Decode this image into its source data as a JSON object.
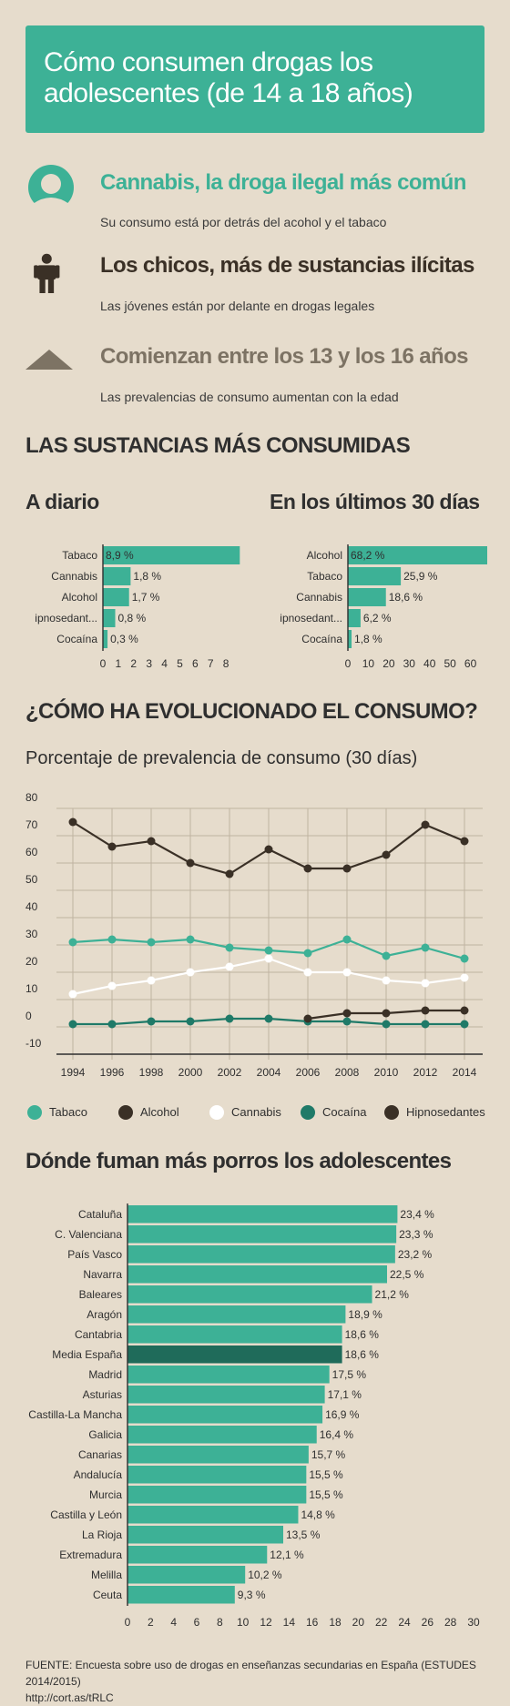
{
  "header": {
    "title": "Cómo consumen drogas los adolescentes (de 14 a 18 años)"
  },
  "facts": [
    {
      "icon": "face-icon",
      "title": "Cannabis, la droga ilegal más común",
      "subtitle": "Su consumo está por detrás del acohol y el tabaco",
      "color": "#3db196"
    },
    {
      "icon": "person-icon",
      "title": "Los chicos, más de sustancias ilícitas",
      "subtitle": "Las jóvenes están por delante en drogas legales",
      "color": "#3a3026"
    },
    {
      "icon": "triangle-icon",
      "title": "Comienzan entre los 13 y los 16 años",
      "subtitle": "Las prevalencias de consumo aumentan con la edad",
      "color": "#7d7364"
    }
  ],
  "section1": {
    "title": "LAS SUSTANCIAS MÁS CONSUMIDAS",
    "daily_title": "A diario",
    "month_title": "En los últimos 30 días"
  },
  "section2": {
    "title": "¿CÓMO HA EVOLUCIONADO EL CONSUMO?",
    "chart_title": "Porcentaje de prevalencia de consumo (30 días)"
  },
  "section3": {
    "title": "Dónde fuman más porros los adolescentes"
  },
  "footer": {
    "source": "FUENTE: Encuesta sobre uso de drogas en enseñanzas secundarias en España (ESTUDES 2014/2015)",
    "link": "http://cort.as/tRLC"
  },
  "chart_data": [
    {
      "type": "bar",
      "orientation": "horizontal",
      "title": "A diario",
      "categories": [
        "Tabaco",
        "Cannabis",
        "Alcohol",
        "ipnosedant...",
        "Cocaína"
      ],
      "values": [
        8.9,
        1.8,
        1.7,
        0.8,
        0.3
      ],
      "value_labels": [
        "8,9 %",
        "1,8 %",
        "1,7 %",
        "0,8 %",
        "0,3 %"
      ],
      "ticks": [
        "0",
        "1",
        "2",
        "3",
        "4",
        "5",
        "6",
        "7",
        "8"
      ],
      "xlim": [
        0,
        9
      ],
      "color": "#3db196"
    },
    {
      "type": "bar",
      "orientation": "horizontal",
      "title": "En los últimos 30 días",
      "categories": [
        "Alcohol",
        "Tabaco",
        "Cannabis",
        "ipnosedant...",
        "Cocaína"
      ],
      "values": [
        68.2,
        25.9,
        18.6,
        6.2,
        1.8
      ],
      "value_labels": [
        "68,2 %",
        "25,9 %",
        "18,6 %",
        "6,2 %",
        "1,8 %"
      ],
      "ticks": [
        "0",
        "10",
        "20",
        "30",
        "40",
        "50",
        "60"
      ],
      "xlim": [
        0,
        68.2
      ],
      "color": "#3db196"
    },
    {
      "type": "line",
      "title": "Porcentaje de prevalencia de consumo (30 días)",
      "x": [
        "1994",
        "1996",
        "1998",
        "2000",
        "2002",
        "2004",
        "2006",
        "2008",
        "2010",
        "2012",
        "2014"
      ],
      "ylim": [
        -10,
        80
      ],
      "yticks": [
        "80",
        "70",
        "60",
        "50",
        "40",
        "30",
        "20",
        "10",
        "0",
        "-10"
      ],
      "grid": true,
      "legend_position": "bottom",
      "series": [
        {
          "name": "Tabaco",
          "color": "#3db196",
          "values": [
            31,
            32,
            31,
            32,
            29,
            28,
            27,
            32,
            26,
            29,
            25
          ]
        },
        {
          "name": "Alcohol",
          "color": "#3a3026",
          "values": [
            75,
            66,
            68,
            60,
            56,
            65,
            58,
            58,
            63,
            74,
            68
          ]
        },
        {
          "name": "Cannabis",
          "color": "#ffffff",
          "values": [
            12,
            15,
            17,
            20,
            22,
            25,
            20,
            20,
            17,
            16,
            18
          ]
        },
        {
          "name": "Cocaína",
          "color": "#1f7a68",
          "values": [
            1,
            1,
            2,
            2,
            3,
            3,
            2,
            2,
            1,
            1,
            1
          ]
        },
        {
          "name": "Hipnosedantes",
          "color": "#3a3026",
          "values": [
            null,
            null,
            null,
            null,
            null,
            null,
            3,
            5,
            5,
            6,
            6
          ]
        }
      ]
    },
    {
      "type": "bar",
      "orientation": "horizontal",
      "title": "Dónde fuman más porros los adolescentes",
      "categories": [
        "Cataluña",
        "C. Valenciana",
        "País Vasco",
        "Navarra",
        "Baleares",
        "Aragón",
        "Cantabria",
        "Media España",
        "Madrid",
        "Asturias",
        "Castilla-La Mancha",
        "Galicia",
        "Canarias",
        "Andalucía",
        "Murcia",
        "Castilla y León",
        "La Rioja",
        "Extremadura",
        "Melilla",
        "Ceuta"
      ],
      "values": [
        23.4,
        23.3,
        23.2,
        22.5,
        21.2,
        18.9,
        18.6,
        18.6,
        17.5,
        17.1,
        16.9,
        16.4,
        15.7,
        15.5,
        15.5,
        14.8,
        13.5,
        12.1,
        10.2,
        9.3
      ],
      "value_labels": [
        "23,4 %",
        "23,3 %",
        "23,2 %",
        "22,5 %",
        "21,2 %",
        "18,9 %",
        "18,6 %",
        "18,6 %",
        "17,5 %",
        "17,1 %",
        "16,9 %",
        "16,4 %",
        "15,7 %",
        "15,5 %",
        "15,5 %",
        "14,8 %",
        "13,5 %",
        "12,1 %",
        "10,2 %",
        "9,3 %"
      ],
      "highlight": "Media España",
      "ticks": [
        "0",
        "2",
        "4",
        "6",
        "8",
        "10",
        "12",
        "14",
        "16",
        "18",
        "20",
        "22",
        "24",
        "26",
        "28",
        "30"
      ],
      "xlim": [
        0,
        30
      ],
      "color": "#3db196",
      "highlight_color": "#1f6b5a"
    }
  ]
}
